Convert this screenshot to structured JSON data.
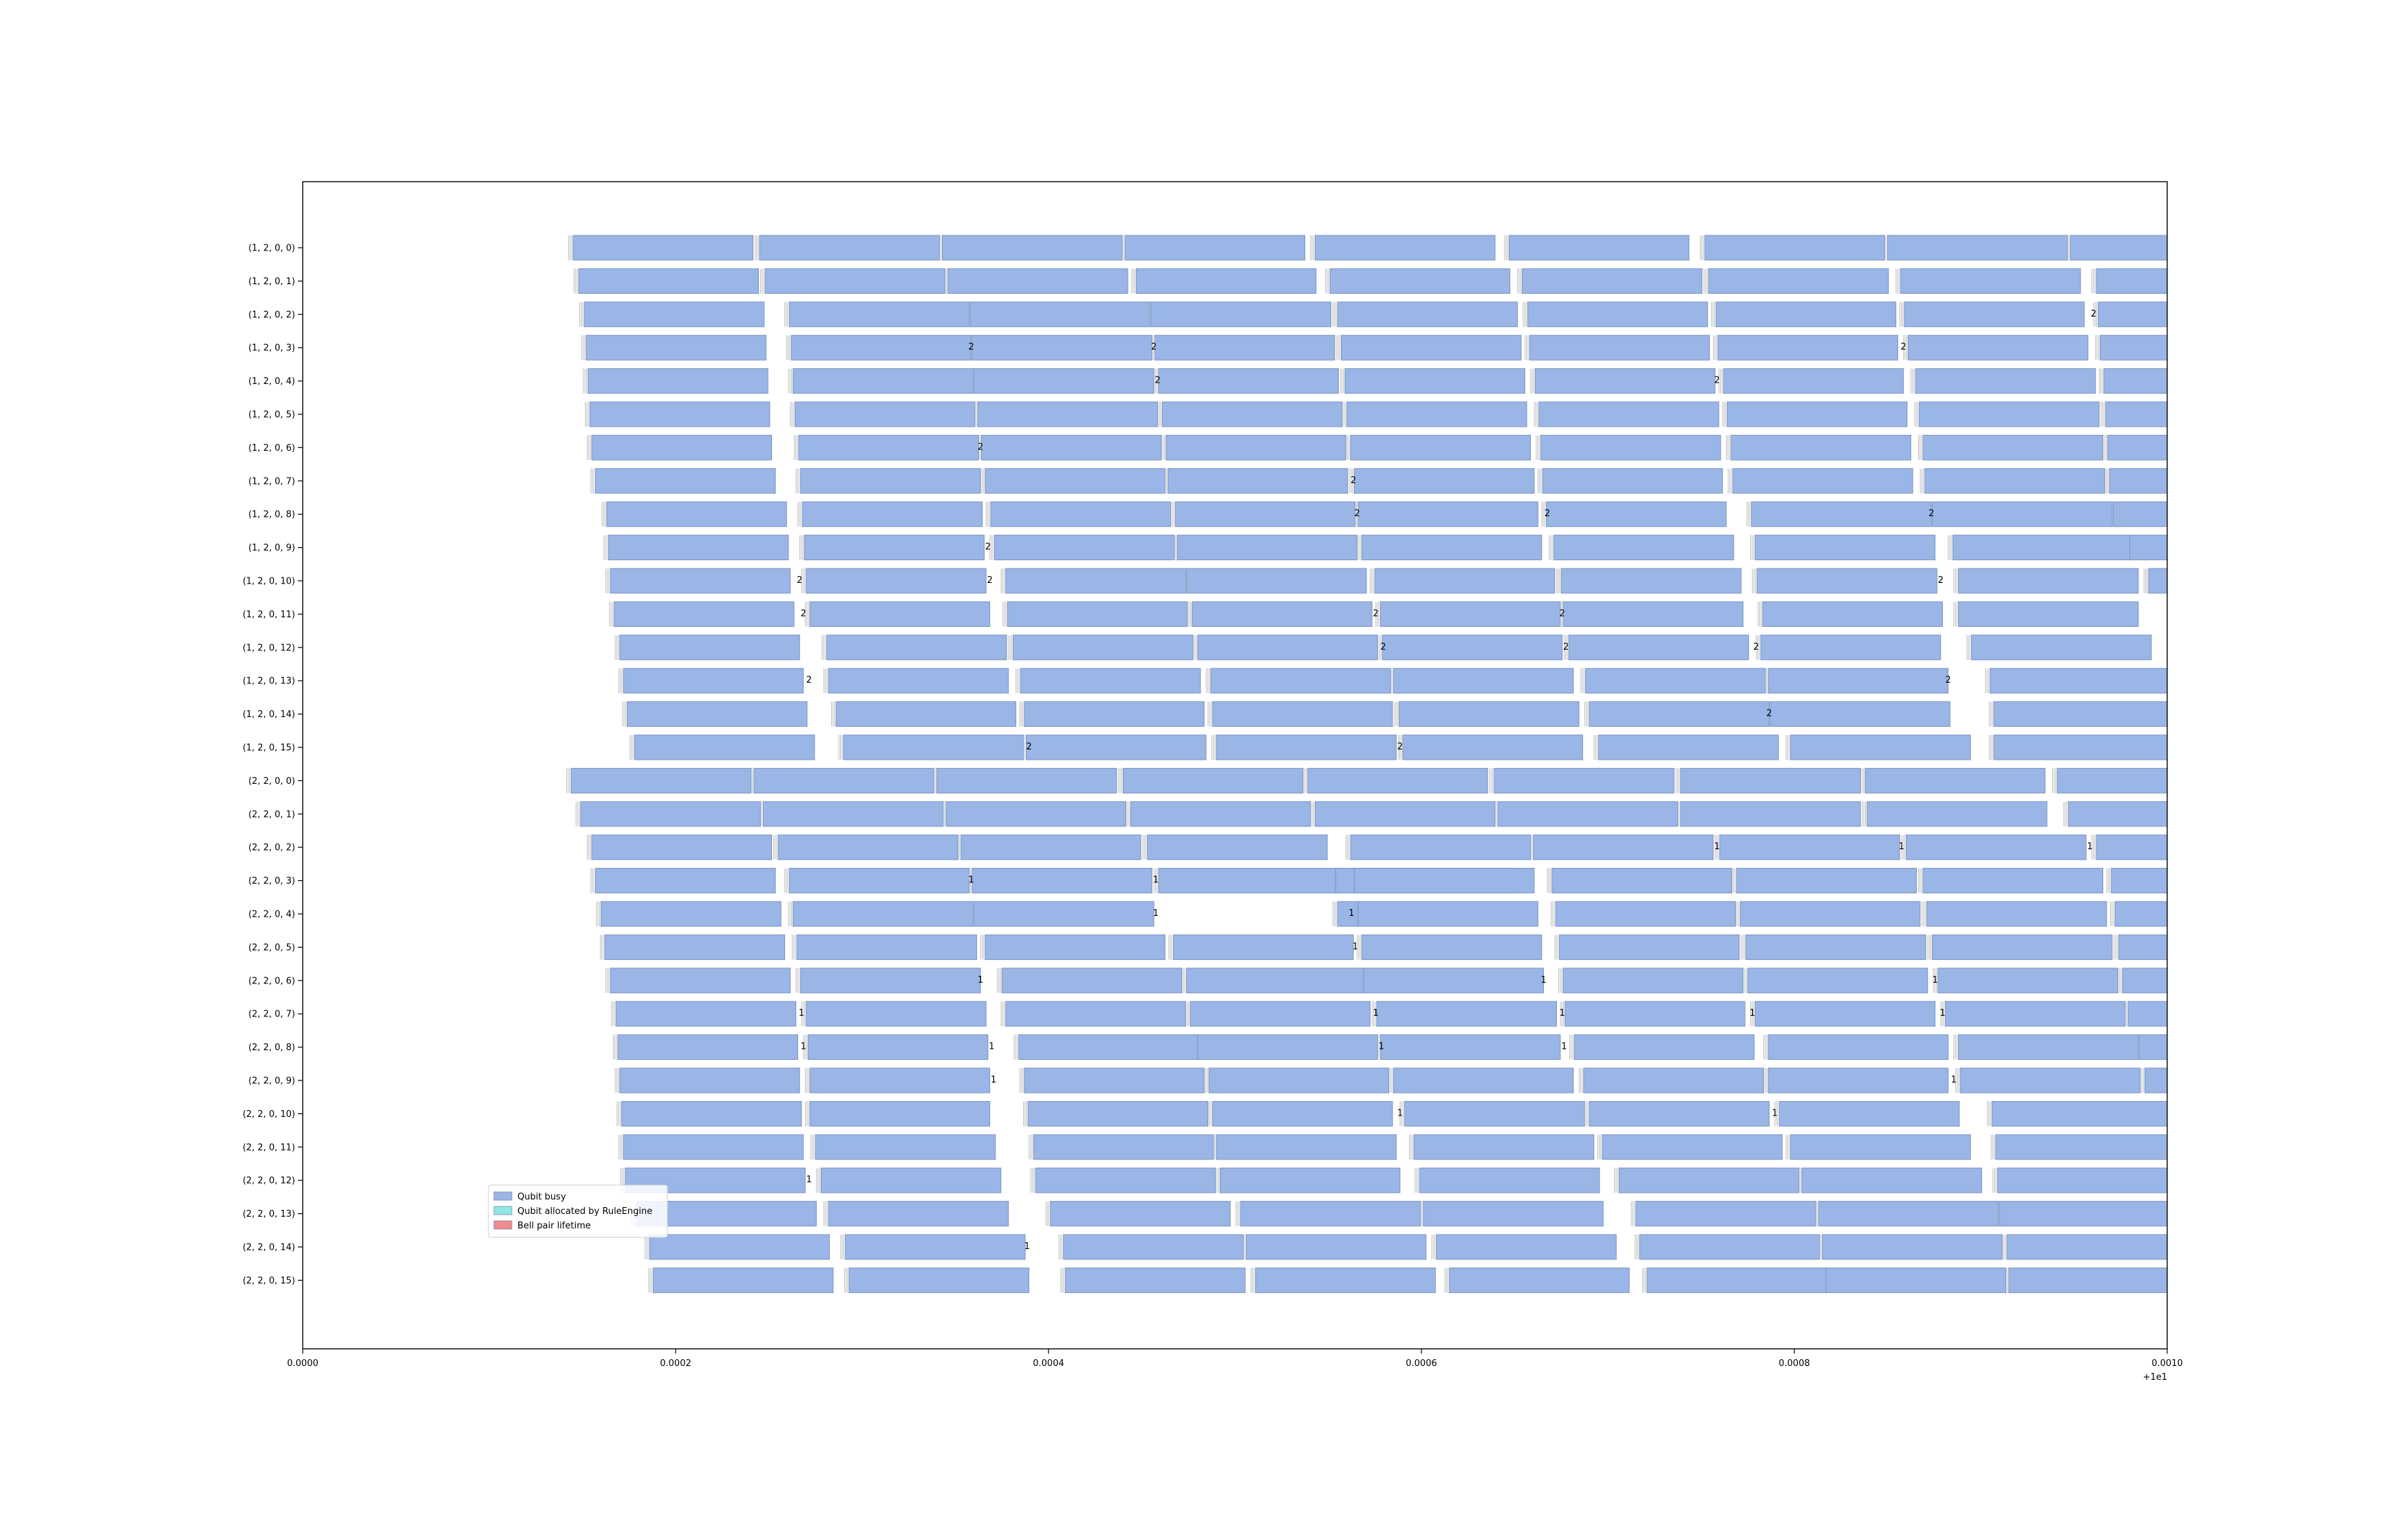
{
  "chart_data": {
    "type": "timeline",
    "title": "",
    "xlabel": "",
    "ylabel": "",
    "x_offset_label": "+1e1",
    "xlim": [
      0.0,
      0.001
    ],
    "x_ticks": [
      0.0,
      0.0002,
      0.0004,
      0.0006,
      0.0008,
      0.001
    ],
    "x_tick_labels": [
      "0.0000",
      "0.0002",
      "0.0004",
      "0.0006",
      "0.0008",
      "0.0010"
    ],
    "grid": false,
    "legend": {
      "placement": "lower-left",
      "entries": [
        {
          "label": "Qubit busy",
          "color": "#99b6e6"
        },
        {
          "label": "Qubit allocated by RuleEngine",
          "color": "#8fe8e6"
        },
        {
          "label": "Bell pair lifetime",
          "color": "#f08c8c"
        }
      ]
    },
    "colors": {
      "busy": "#99b6e6",
      "busy_edge": "#7d94bd",
      "gap_line": "#bfbfbf"
    },
    "busy_duration": 9.65e-05,
    "rows": [
      {
        "label": "(1, 2, 0, 0)",
        "starts": [
          0.000145,
          0.000245,
          0.000343,
          0.000441,
          0.000543,
          0.000647,
          0.000752,
          0.00085,
          0.000948
        ]
      },
      {
        "label": "(1, 2, 0, 1)",
        "starts": [
          0.000148,
          0.000248,
          0.000346,
          0.000447,
          0.000551,
          0.000654,
          0.000754,
          0.000857,
          0.000962
        ]
      },
      {
        "label": "(1, 2, 0, 2)",
        "starts": [
          0.000151,
          0.000261,
          0.000358,
          0.000455,
          0.000555,
          0.000657,
          0.000758,
          0.000859,
          0.000963
        ],
        "notes": [
          {
            "x": 0.000959,
            "text": "2"
          }
        ]
      },
      {
        "label": "(1, 2, 0, 3)",
        "starts": [
          0.000152,
          0.000262,
          0.000359,
          0.000457,
          0.000557,
          0.000658,
          0.000759,
          0.000861,
          0.000964
        ],
        "notes": [
          {
            "x": 0.000357,
            "text": "2"
          },
          {
            "x": 0.000455,
            "text": "2"
          },
          {
            "x": 0.000857,
            "text": "2"
          }
        ]
      },
      {
        "label": "(1, 2, 0, 4)",
        "starts": [
          0.000153,
          0.000263,
          0.00036,
          0.000459,
          0.000559,
          0.000661,
          0.000762,
          0.000865,
          0.000966
        ],
        "notes": [
          {
            "x": 0.000457,
            "text": "2"
          },
          {
            "x": 0.000757,
            "text": "2"
          }
        ]
      },
      {
        "label": "(1, 2, 0, 5)",
        "starts": [
          0.000154,
          0.000264,
          0.000362,
          0.000461,
          0.00056,
          0.000663,
          0.000764,
          0.000867,
          0.000967
        ]
      },
      {
        "label": "(1, 2, 0, 6)",
        "starts": [
          0.000155,
          0.000266,
          0.000364,
          0.000463,
          0.000562,
          0.000664,
          0.000766,
          0.000869,
          0.000968
        ],
        "notes": [
          {
            "x": 0.000362,
            "text": "2"
          }
        ]
      },
      {
        "label": "(1, 2, 0, 7)",
        "starts": [
          0.000157,
          0.000267,
          0.000366,
          0.000564,
          0.000464,
          0.000665,
          0.000767,
          0.00087,
          0.000969
        ],
        "notes": [
          {
            "x": 0.000562,
            "text": "2"
          }
        ]
      },
      {
        "label": "(1, 2, 0, 8)",
        "starts": [
          0.000163,
          0.000268,
          0.000369,
          0.000468,
          0.000566,
          0.000667,
          0.000777,
          0.000874,
          0.000971
        ],
        "notes": [
          {
            "x": 0.000564,
            "text": "2"
          },
          {
            "x": 0.000666,
            "text": "2"
          },
          {
            "x": 0.000872,
            "text": "2"
          }
        ]
      },
      {
        "label": "(1, 2, 0, 9)",
        "starts": [
          0.000164,
          0.000269,
          0.000371,
          0.000469,
          0.000568,
          0.000671,
          0.000779,
          0.000885,
          0.00098
        ],
        "notes": [
          {
            "x": 0.000366,
            "text": "2"
          }
        ]
      },
      {
        "label": "(1, 2, 0, 10)",
        "starts": [
          0.000165,
          0.00027,
          0.000377,
          0.000474,
          0.000575,
          0.000675,
          0.00078,
          0.000888,
          0.00099
        ],
        "notes": [
          {
            "x": 0.000265,
            "text": "2"
          },
          {
            "x": 0.000367,
            "text": "2"
          },
          {
            "x": 0.000877,
            "text": "2"
          }
        ]
      },
      {
        "label": "(1, 2, 0, 11)",
        "starts": [
          0.000167,
          0.000272,
          0.000378,
          0.000477,
          0.000578,
          0.000676,
          0.000783,
          0.000888
        ],
        "notes": [
          {
            "x": 0.000267,
            "text": "2"
          },
          {
            "x": 0.000574,
            "text": "2"
          },
          {
            "x": 0.000674,
            "text": "2"
          }
        ]
      },
      {
        "label": "(1, 2, 0, 12)",
        "starts": [
          0.00017,
          0.000281,
          0.000381,
          0.00048,
          0.000579,
          0.000679,
          0.000782,
          0.000895
        ],
        "notes": [
          {
            "x": 0.000578,
            "text": "2"
          },
          {
            "x": 0.000676,
            "text": "2"
          },
          {
            "x": 0.000778,
            "text": "2"
          }
        ]
      },
      {
        "label": "(1, 2, 0, 13)",
        "starts": [
          0.000172,
          0.000282,
          0.000385,
          0.000487,
          0.000585,
          0.000688,
          0.000786,
          0.000905
        ],
        "notes": [
          {
            "x": 0.00027,
            "text": "2"
          },
          {
            "x": 0.000881,
            "text": "2"
          }
        ]
      },
      {
        "label": "(1, 2, 0, 14)",
        "starts": [
          0.000174,
          0.000286,
          0.000387,
          0.000488,
          0.000588,
          0.00069,
          0.000787,
          0.000907
        ],
        "notes": [
          {
            "x": 0.000785,
            "text": "2"
          }
        ]
      },
      {
        "label": "(1, 2, 0, 15)",
        "starts": [
          0.000178,
          0.00029,
          0.000388,
          0.00049,
          0.00059,
          0.000695,
          0.000798,
          0.000907
        ],
        "notes": [
          {
            "x": 0.000388,
            "text": "2"
          },
          {
            "x": 0.000587,
            "text": "2"
          }
        ]
      },
      {
        "label": "(2, 2, 0, 0)",
        "starts": [
          0.000144,
          0.000242,
          0.00034,
          0.00044,
          0.000539,
          0.000639,
          0.000739,
          0.000838,
          0.000941
        ]
      },
      {
        "label": "(2, 2, 0, 1)",
        "starts": [
          0.000149,
          0.000247,
          0.000345,
          0.000444,
          0.000543,
          0.000641,
          0.000739,
          0.000839,
          0.000947
        ]
      },
      {
        "label": "(2, 2, 0, 2)",
        "starts": [
          0.000155,
          0.000255,
          0.000353,
          0.000453,
          0.000562,
          0.00066,
          0.00076,
          0.00086,
          0.000962
        ],
        "notes": [
          {
            "x": 0.000757,
            "text": "1"
          },
          {
            "x": 0.000856,
            "text": "1"
          },
          {
            "x": 0.000957,
            "text": "1"
          }
        ]
      },
      {
        "label": "(2, 2, 0, 3)",
        "starts": [
          0.000157,
          0.000261,
          0.000359,
          0.000459,
          0.000554,
          0.000564,
          0.00067,
          0.000769,
          0.000869,
          0.00097
        ],
        "notes": [
          {
            "x": 0.000357,
            "text": "1"
          },
          {
            "x": 0.000456,
            "text": "1"
          }
        ]
      },
      {
        "label": "(2, 2, 0, 4)",
        "starts": [
          0.00016,
          0.000263,
          0.00036,
          0.000555,
          0.000566,
          0.000672,
          0.000771,
          0.000871,
          0.000972
        ],
        "notes": [
          {
            "x": 0.000456,
            "text": "1"
          },
          {
            "x": 0.000561,
            "text": "1"
          }
        ]
      },
      {
        "label": "(2, 2, 0, 5)",
        "starts": [
          0.000162,
          0.000265,
          0.000366,
          0.000467,
          0.000568,
          0.000674,
          0.000774,
          0.000874,
          0.000974
        ],
        "notes": [
          {
            "x": 0.000563,
            "text": "1"
          }
        ]
      },
      {
        "label": "(2, 2, 0, 6)",
        "starts": [
          0.000165,
          0.000267,
          0.000375,
          0.000474,
          0.000569,
          0.000676,
          0.000775,
          0.000877,
          0.000976
        ],
        "notes": [
          {
            "x": 0.000362,
            "text": "1"
          },
          {
            "x": 0.000664,
            "text": "1"
          },
          {
            "x": 0.000874,
            "text": "1"
          }
        ]
      },
      {
        "label": "(2, 2, 0, 7)",
        "starts": [
          0.000168,
          0.00027,
          0.000377,
          0.000476,
          0.000576,
          0.000677,
          0.000779,
          0.000881,
          0.000979
        ],
        "notes": [
          {
            "x": 0.000266,
            "text": "1"
          },
          {
            "x": 0.000574,
            "text": "1"
          },
          {
            "x": 0.000674,
            "text": "1"
          },
          {
            "x": 0.000776,
            "text": "1"
          },
          {
            "x": 0.000878,
            "text": "1"
          }
        ]
      },
      {
        "label": "(2, 2, 0, 8)",
        "starts": [
          0.000169,
          0.000271,
          0.000384,
          0.00048,
          0.000578,
          0.000682,
          0.000786,
          0.000888,
          0.000985
        ],
        "notes": [
          {
            "x": 0.000267,
            "text": "1"
          },
          {
            "x": 0.000368,
            "text": "1"
          },
          {
            "x": 0.000577,
            "text": "1"
          },
          {
            "x": 0.000675,
            "text": "1"
          }
        ]
      },
      {
        "label": "(2, 2, 0, 9)",
        "starts": [
          0.00017,
          0.000272,
          0.000387,
          0.000486,
          0.000585,
          0.000687,
          0.000786,
          0.000889,
          0.000988
        ],
        "notes": [
          {
            "x": 0.000369,
            "text": "1"
          },
          {
            "x": 0.000884,
            "text": "1"
          }
        ]
      },
      {
        "label": "(2, 2, 0, 10)",
        "starts": [
          0.000171,
          0.000272,
          0.000389,
          0.000488,
          0.000591,
          0.00069,
          0.000792,
          0.000906
        ],
        "notes": [
          {
            "x": 0.000587,
            "text": "1"
          },
          {
            "x": 0.000788,
            "text": "1"
          }
        ]
      },
      {
        "label": "(2, 2, 0, 11)",
        "starts": [
          0.000172,
          0.000275,
          0.000392,
          0.00049,
          0.000596,
          0.000697,
          0.000798,
          0.000908
        ]
      },
      {
        "label": "(2, 2, 0, 12)",
        "starts": [
          0.000173,
          0.000278,
          0.000393,
          0.000492,
          0.000599,
          0.000706,
          0.000804,
          0.000909
        ],
        "notes": [
          {
            "x": 0.00027,
            "text": "1"
          }
        ]
      },
      {
        "label": "(2, 2, 0, 13)",
        "starts": [
          0.000179,
          0.000282,
          0.000401,
          0.000503,
          0.000601,
          0.000715,
          0.000813,
          0.00091
        ]
      },
      {
        "label": "(2, 2, 0, 14)",
        "starts": [
          0.000186,
          0.000291,
          0.000408,
          0.000506,
          0.000608,
          0.000717,
          0.000815,
          0.000914
        ],
        "notes": [
          {
            "x": 0.000387,
            "text": "1"
          }
        ]
      },
      {
        "label": "(2, 2, 0, 15)",
        "starts": [
          0.000188,
          0.000293,
          0.000409,
          0.000511,
          0.000615,
          0.000721,
          0.000817,
          0.000915
        ]
      }
    ]
  }
}
